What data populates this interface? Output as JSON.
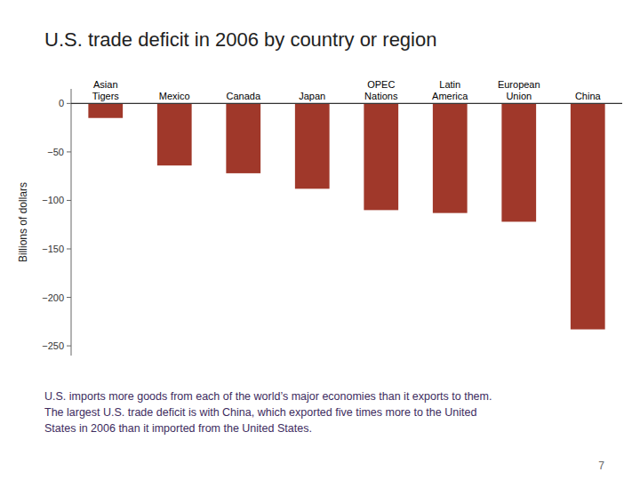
{
  "chart_data": {
    "type": "bar",
    "title": "U.S. trade deficit in 2006 by country or region",
    "categories": [
      "Asian\nTigers",
      "Mexico",
      "Canada",
      "Japan",
      "OPEC\nNations",
      "Latin\nAmerica",
      "European\nUnion",
      "China"
    ],
    "values": [
      -15,
      -64,
      -72,
      -88,
      -110,
      -113,
      -122,
      -233
    ],
    "color": "#a0382a",
    "y_label": "Billions of dollars",
    "ylim": [
      -260,
      15
    ],
    "yticks": [
      0,
      {
        "value": -50,
        "label": "−50"
      },
      {
        "value": -100,
        "label": "−100"
      },
      {
        "value": -150,
        "label": "−150"
      },
      {
        "value": -200,
        "label": "−200"
      },
      {
        "value": -250,
        "label": "−250"
      }
    ],
    "grid": false,
    "annotations": [
      "U.S. imports more goods from each of the world’s major economies than it exports to them.\nThe largest U.S. trade deficit is with China, which exported five times more to the United\nStates in 2006 than it imported from the United States.",
      "7"
    ]
  }
}
